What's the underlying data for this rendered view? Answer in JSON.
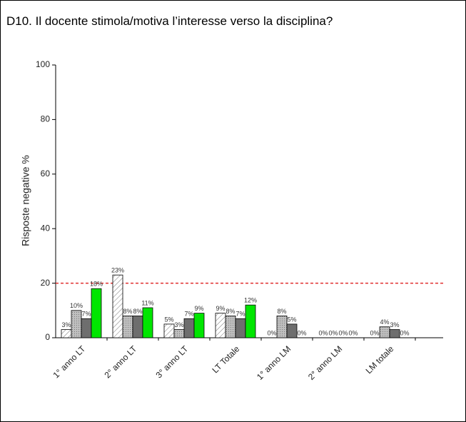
{
  "chart_data": {
    "type": "bar",
    "title": "D10. Il docente stimola/motiva l’interesse verso la disciplina?",
    "y_label": "Risposte negative %",
    "categories": [
      "1° anno LT",
      "2° anno LT",
      "3° anno LT",
      "LT Totale",
      "1° anno LM",
      "2° anno LM",
      "LM totale"
    ],
    "series": [
      {
        "color": "#ffffff",
        "pattern": "hatch",
        "values": [
          3,
          23,
          5,
          9,
          0,
          0,
          0
        ],
        "value_labels": [
          "3%",
          "23%",
          "5%",
          "9%",
          "0%",
          "0%",
          "0%"
        ]
      },
      {
        "color": "#c0c0c0",
        "pattern": "dots",
        "values": [
          10,
          8,
          3,
          8,
          8,
          0,
          4
        ],
        "value_labels": [
          "10%",
          "8%",
          "3%",
          "8%",
          "8%",
          "0%",
          "4%"
        ]
      },
      {
        "color": "#6e6e6e",
        "pattern": "solid",
        "values": [
          7,
          8,
          7,
          7,
          5,
          0,
          3
        ],
        "value_labels": [
          "7%",
          "8%",
          "7%",
          "7%",
          "5%",
          "0%",
          "3%"
        ]
      },
      {
        "color": "#00e600",
        "pattern": "solid",
        "values": [
          18,
          11,
          9,
          12,
          0,
          0,
          0
        ],
        "value_labels": [
          "18%",
          "11%",
          "9%",
          "12%",
          "0%",
          "0%",
          "0%"
        ]
      }
    ],
    "reference_line": {
      "value": 20,
      "color": "#e03030"
    },
    "ylim": [
      0,
      100
    ],
    "yticks": [
      0,
      20,
      40,
      60,
      80,
      100
    ]
  }
}
